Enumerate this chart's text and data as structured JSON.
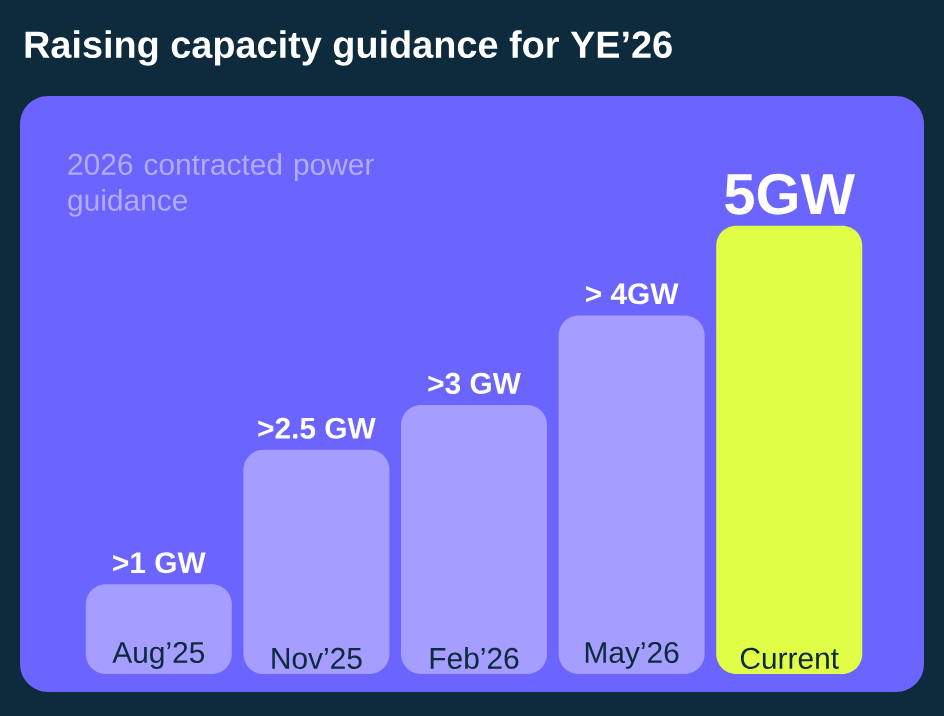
{
  "chart_data": {
    "type": "bar",
    "title": "Raising capacity guidance for YE’26",
    "subtitle": "2026 contracted power guidance",
    "categories": [
      "Aug’25",
      "Nov’25",
      "Feb’26",
      "May’26",
      "Current"
    ],
    "values": [
      1,
      2.5,
      3,
      4,
      5
    ],
    "value_labels": [
      ">1 GW",
      ">2.5 GW",
      ">3 GW",
      "> 4GW",
      "5GW"
    ],
    "colors": [
      "#a59dff",
      "#a59dff",
      "#a59dff",
      "#a59dff",
      "#e2ff48"
    ]
  }
}
